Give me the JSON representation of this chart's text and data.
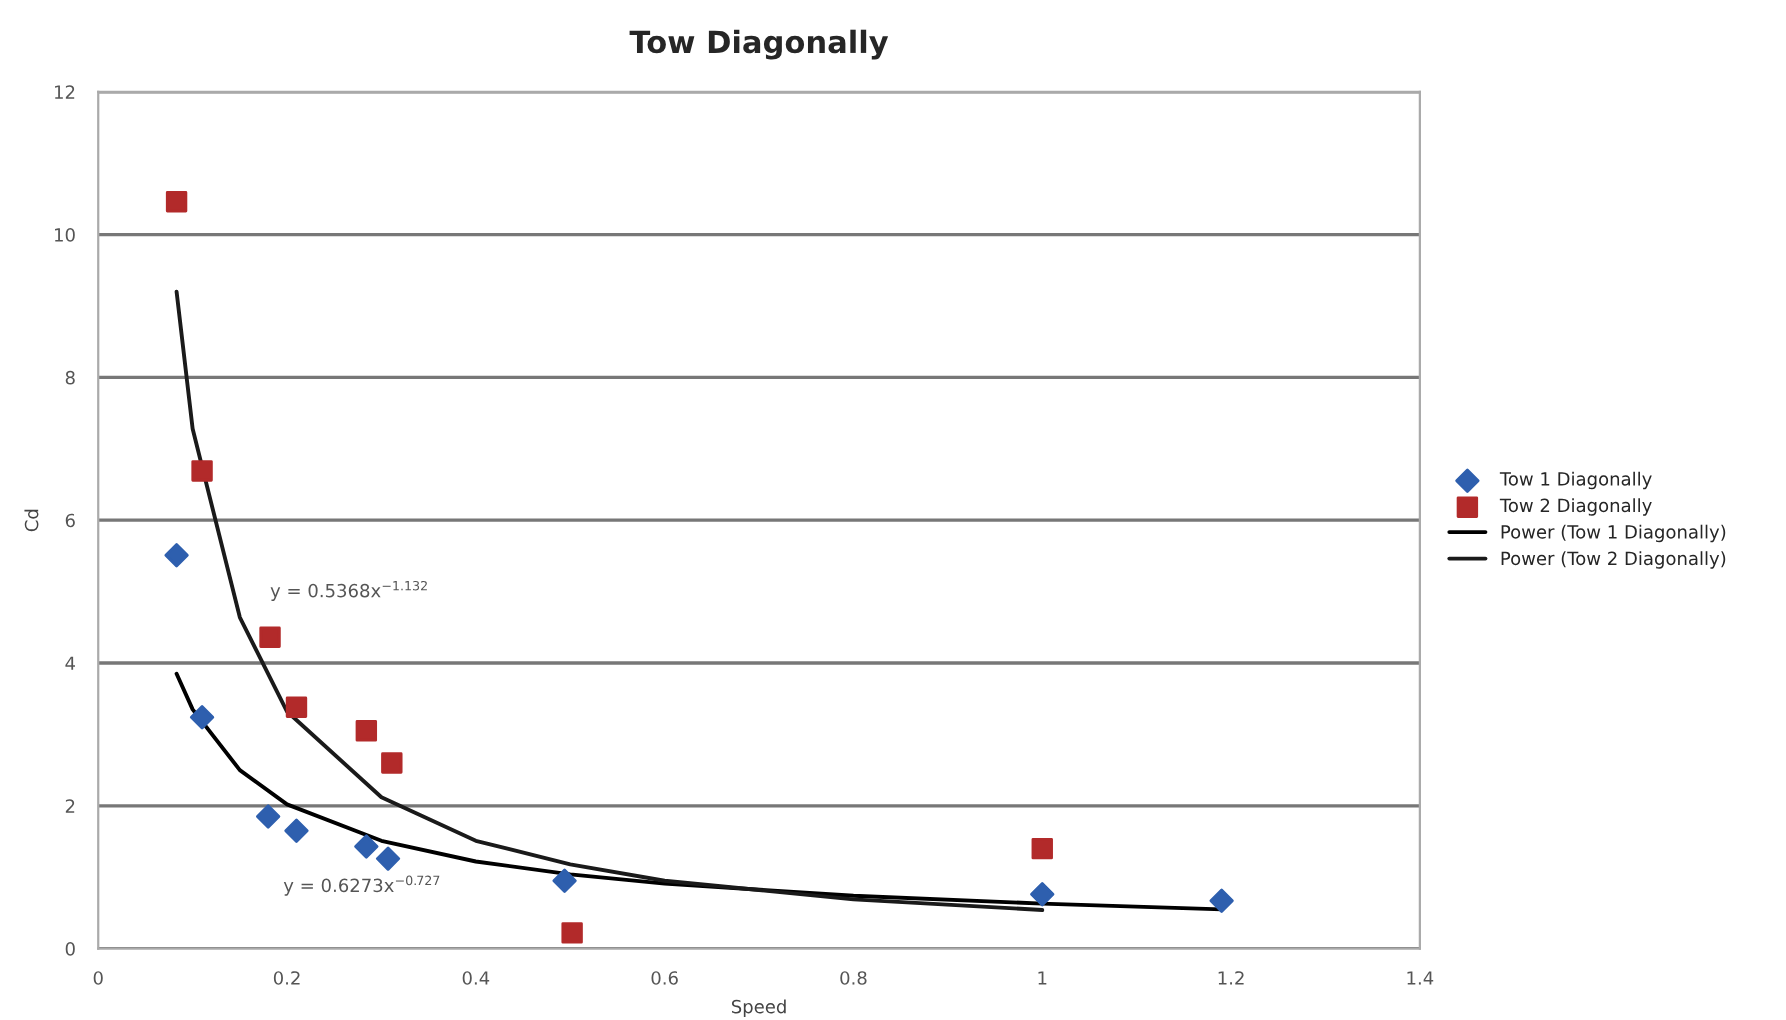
{
  "chart_data": {
    "type": "scatter",
    "title": "Tow Diagonally",
    "xlabel": "Speed",
    "ylabel": "Cd",
    "xlim": [
      0,
      1.4
    ],
    "xticks": [
      0,
      0.2,
      0.4,
      0.6,
      0.8,
      1,
      1.2,
      1.4
    ],
    "ylim": [
      0,
      12
    ],
    "yticks": [
      0,
      2,
      4,
      6,
      8,
      10,
      12
    ],
    "grid": "y",
    "legend": "right",
    "series": [
      {
        "name": "Tow 1 Diagonally",
        "marker": "diamond",
        "color": "#2e5fae",
        "x": [
          0.083,
          0.11,
          0.18,
          0.21,
          0.284,
          0.307,
          0.494,
          1.0,
          1.19
        ],
        "values": [
          5.51,
          3.24,
          1.85,
          1.65,
          1.43,
          1.26,
          0.95,
          0.76,
          0.67
        ]
      },
      {
        "name": "Tow 2 Diagonally",
        "marker": "square",
        "color": "#b22a2a",
        "x": [
          0.083,
          0.11,
          0.182,
          0.21,
          0.284,
          0.311,
          0.502,
          1.0
        ],
        "values": [
          10.46,
          6.69,
          4.36,
          3.38,
          3.05,
          2.6,
          0.22,
          1.4
        ]
      },
      {
        "name": "Power (Tow 1 Diagonally)",
        "type": "line",
        "marker": "none",
        "color": "#000000",
        "x": [
          0.083,
          0.1,
          0.15,
          0.2,
          0.3,
          0.4,
          0.5,
          0.6,
          0.8,
          1.0,
          1.19
        ],
        "values": [
          3.85,
          3.35,
          2.5,
          2.02,
          1.51,
          1.22,
          1.04,
          0.91,
          0.74,
          0.63,
          0.55
        ]
      },
      {
        "name": "Power (Tow 2 Diagonally)",
        "type": "line",
        "marker": "none",
        "color": "#1a1a1a",
        "x": [
          0.083,
          0.1,
          0.15,
          0.2,
          0.3,
          0.4,
          0.5,
          0.6,
          0.8,
          1.0
        ],
        "values": [
          9.2,
          7.28,
          4.64,
          3.32,
          2.12,
          1.51,
          1.18,
          0.95,
          0.69,
          0.54
        ]
      }
    ],
    "annotations": [
      "y = 0.5368x$^{−1.132}$",
      "y = 0.6273x$^{−0.727}$"
    ]
  }
}
